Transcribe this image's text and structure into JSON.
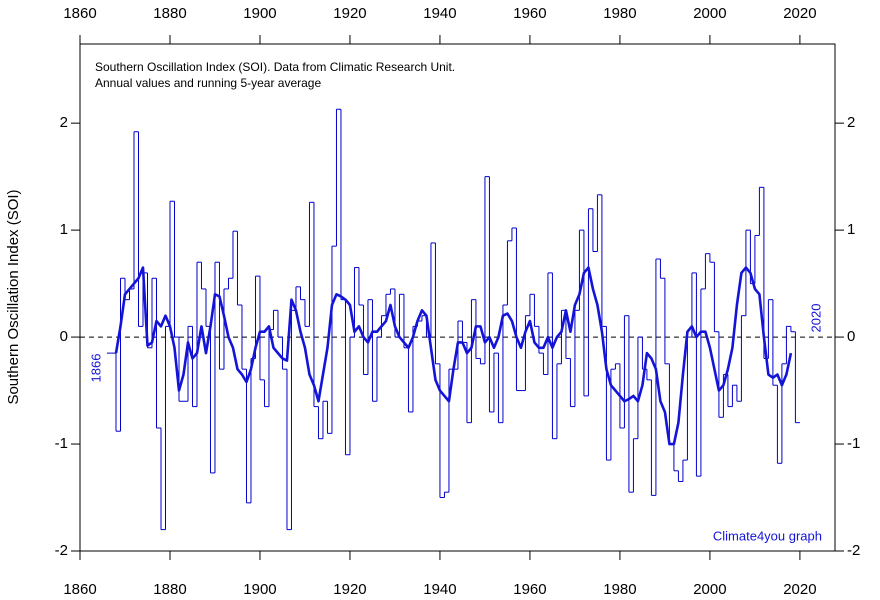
{
  "chart_data": {
    "type": "line",
    "title": [
      "Southern Oscillation Index (SOI). Data from Climatic Research Unit.",
      "Annual values and running 5-year average"
    ],
    "y_label": "Southern Oscillation Index (SOI)",
    "annotations": [
      "1866",
      "2020",
      "Climate4you graph"
    ],
    "xlim": [
      1860,
      2027.8
    ],
    "xticks": [
      1860,
      1880,
      1900,
      1920,
      1940,
      1960,
      1980,
      2000,
      2020
    ],
    "ylim": [
      -2,
      2.74
    ],
    "yticks": [
      -2,
      -1,
      0,
      1,
      2
    ],
    "reference_line": 0,
    "series": [
      {
        "style": "step",
        "color": "#0000cc",
        "x": [
          1866,
          1867,
          1868,
          1869,
          1870,
          1871,
          1872,
          1873,
          1874,
          1875,
          1876,
          1877,
          1878,
          1879,
          1880,
          1881,
          1882,
          1883,
          1884,
          1885,
          1886,
          1887,
          1888,
          1889,
          1890,
          1891,
          1892,
          1893,
          1894,
          1895,
          1896,
          1897,
          1898,
          1899,
          1900,
          1901,
          1902,
          1903,
          1904,
          1905,
          1906,
          1907,
          1908,
          1909,
          1910,
          1911,
          1912,
          1913,
          1914,
          1915,
          1916,
          1917,
          1918,
          1919,
          1920,
          1921,
          1922,
          1923,
          1924,
          1925,
          1926,
          1927,
          1928,
          1929,
          1930,
          1931,
          1932,
          1933,
          1934,
          1935,
          1936,
          1937,
          1938,
          1939,
          1940,
          1941,
          1942,
          1943,
          1944,
          1945,
          1946,
          1947,
          1948,
          1949,
          1950,
          1951,
          1952,
          1953,
          1954,
          1955,
          1956,
          1957,
          1958,
          1959,
          1960,
          1961,
          1962,
          1963,
          1964,
          1965,
          1966,
          1967,
          1968,
          1969,
          1970,
          1971,
          1972,
          1973,
          1974,
          1975,
          1976,
          1977,
          1978,
          1979,
          1980,
          1981,
          1982,
          1983,
          1984,
          1985,
          1986,
          1987,
          1988,
          1989,
          1990,
          1991,
          1992,
          1993,
          1994,
          1995,
          1996,
          1997,
          1998,
          1999,
          2000,
          2001,
          2002,
          2003,
          2004,
          2005,
          2006,
          2007,
          2008,
          2009,
          2010,
          2011,
          2012,
          2013,
          2014,
          2015,
          2016,
          2017,
          2018,
          2019
        ],
        "values": [
          -0.15,
          -0.15,
          -0.88,
          0.55,
          0.35,
          0.45,
          1.92,
          0.1,
          0.6,
          -0.1,
          0.55,
          -0.85,
          -1.8,
          0.1,
          1.27,
          0.0,
          -0.6,
          -0.6,
          0.1,
          -0.65,
          0.7,
          0.45,
          0.1,
          -1.27,
          0.7,
          -0.3,
          0.45,
          0.55,
          0.99,
          0.3,
          -0.3,
          -1.55,
          -0.2,
          0.57,
          -0.4,
          -0.65,
          0.07,
          0.25,
          0.0,
          -0.3,
          -1.8,
          0.25,
          0.47,
          0.35,
          0.1,
          1.26,
          -0.65,
          -0.95,
          -0.6,
          -0.9,
          0.85,
          2.13,
          0.35,
          -1.1,
          0.0,
          0.65,
          0.3,
          -0.35,
          0.35,
          -0.6,
          0.0,
          0.2,
          0.4,
          0.45,
          0.0,
          0.4,
          -0.1,
          -0.7,
          0.1,
          0.15,
          0.2,
          0.0,
          0.88,
          -0.25,
          -1.5,
          -1.45,
          -0.3,
          -0.3,
          0.15,
          -0.05,
          -0.8,
          0.35,
          -0.2,
          -0.25,
          1.5,
          -0.7,
          -0.15,
          -0.8,
          0.3,
          0.9,
          1.02,
          -0.5,
          -0.5,
          0.2,
          0.4,
          0.1,
          -0.15,
          -0.35,
          0.6,
          -0.95,
          -0.25,
          0.25,
          -0.2,
          -0.65,
          0.25,
          1.0,
          -0.55,
          1.2,
          0.8,
          1.33,
          0.1,
          -1.15,
          -0.3,
          -0.25,
          -0.85,
          0.2,
          -1.45,
          -0.95,
          0.0,
          -0.3,
          -0.4,
          -1.48,
          0.73,
          0.55,
          -0.25,
          -1.0,
          -1.25,
          -1.35,
          -1.15,
          0.0,
          0.6,
          -1.3,
          0.45,
          0.78,
          0.7,
          0.05,
          -0.75,
          -0.35,
          -0.65,
          -0.45,
          -0.6,
          0.2,
          1.0,
          0.5,
          0.95,
          1.4,
          -0.2,
          0.35,
          -0.45,
          -1.18,
          -0.25,
          0.1,
          0.05,
          -0.8
        ]
      },
      {
        "style": "line",
        "color": "#1414d8",
        "x": [
          1868,
          1869,
          1870,
          1871,
          1872,
          1873,
          1874,
          1875,
          1876,
          1877,
          1878,
          1879,
          1880,
          1881,
          1882,
          1883,
          1884,
          1885,
          1886,
          1887,
          1888,
          1889,
          1890,
          1891,
          1892,
          1893,
          1894,
          1895,
          1896,
          1897,
          1898,
          1899,
          1900,
          1901,
          1902,
          1903,
          1904,
          1905,
          1906,
          1907,
          1908,
          1909,
          1910,
          1911,
          1912,
          1913,
          1914,
          1915,
          1916,
          1917,
          1918,
          1919,
          1920,
          1921,
          1922,
          1923,
          1924,
          1925,
          1926,
          1927,
          1928,
          1929,
          1930,
          1931,
          1932,
          1933,
          1934,
          1935,
          1936,
          1937,
          1938,
          1939,
          1940,
          1941,
          1942,
          1943,
          1944,
          1945,
          1946,
          1947,
          1948,
          1949,
          1950,
          1951,
          1952,
          1953,
          1954,
          1955,
          1956,
          1957,
          1958,
          1959,
          1960,
          1961,
          1962,
          1963,
          1964,
          1965,
          1966,
          1967,
          1968,
          1969,
          1970,
          1971,
          1972,
          1973,
          1974,
          1975,
          1976,
          1977,
          1978,
          1979,
          1980,
          1981,
          1982,
          1983,
          1984,
          1985,
          1986,
          1987,
          1988,
          1989,
          1990,
          1991,
          1992,
          1993,
          1994,
          1995,
          1996,
          1997,
          1998,
          1999,
          2000,
          2001,
          2002,
          2003,
          2004,
          2005,
          2006,
          2007,
          2008,
          2009,
          2010,
          2011,
          2012,
          2013,
          2014,
          2015,
          2016,
          2017,
          2018
        ],
        "values": [
          -0.15,
          0.1,
          0.4,
          0.45,
          0.5,
          0.55,
          0.65,
          -0.08,
          -0.05,
          0.15,
          0.1,
          0.2,
          0.1,
          -0.1,
          -0.5,
          -0.35,
          -0.05,
          -0.2,
          -0.15,
          0.1,
          -0.15,
          0.1,
          0.4,
          0.38,
          0.2,
          0.0,
          -0.1,
          -0.3,
          -0.35,
          -0.42,
          -0.3,
          -0.1,
          0.05,
          0.05,
          0.1,
          -0.1,
          -0.15,
          -0.2,
          -0.22,
          0.35,
          0.25,
          0.05,
          -0.1,
          -0.35,
          -0.45,
          -0.6,
          -0.35,
          -0.1,
          0.3,
          0.4,
          0.38,
          0.35,
          0.3,
          0.05,
          0.1,
          0.0,
          -0.05,
          0.05,
          0.05,
          0.1,
          0.15,
          0.3,
          0.1,
          0.0,
          -0.05,
          -0.1,
          0.0,
          0.15,
          0.25,
          0.2,
          -0.1,
          -0.4,
          -0.5,
          -0.55,
          -0.6,
          -0.3,
          -0.05,
          -0.05,
          -0.15,
          -0.1,
          0.1,
          0.1,
          -0.05,
          0.0,
          -0.1,
          0.0,
          0.2,
          0.22,
          0.15,
          0.0,
          -0.1,
          0.05,
          0.15,
          -0.05,
          -0.1,
          -0.1,
          0.0,
          -0.1,
          0.0,
          0.05,
          0.25,
          0.05,
          0.3,
          0.4,
          0.6,
          0.65,
          0.45,
          0.3,
          0.05,
          -0.3,
          -0.45,
          -0.5,
          -0.55,
          -0.6,
          -0.58,
          -0.55,
          -0.6,
          -0.45,
          -0.15,
          -0.2,
          -0.3,
          -0.6,
          -0.7,
          -1.0,
          -1.0,
          -0.8,
          -0.35,
          0.05,
          0.1,
          0.0,
          0.05,
          0.05,
          -0.1,
          -0.3,
          -0.5,
          -0.45,
          -0.3,
          -0.1,
          0.3,
          0.6,
          0.65,
          0.6,
          0.45,
          0.4,
          0.0,
          -0.35,
          -0.38,
          -0.35,
          -0.45,
          -0.35,
          -0.15
        ]
      }
    ]
  }
}
